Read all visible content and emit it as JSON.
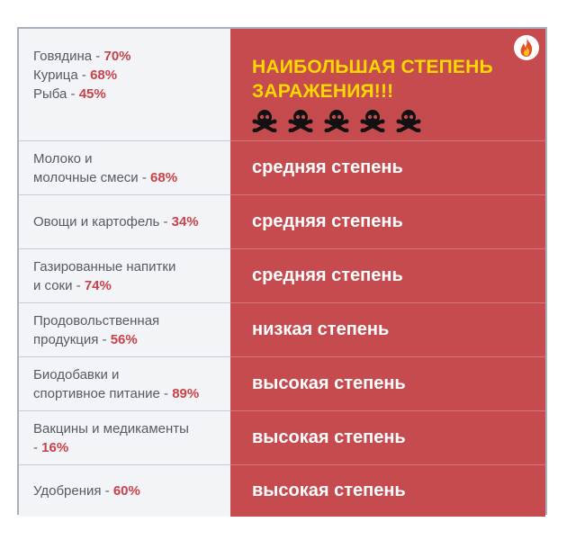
{
  "first_row": {
    "lines": [
      {
        "label": "Говядина - ",
        "pct": "70%"
      },
      {
        "label": "Курица - ",
        "pct": "68%"
      },
      {
        "label": "Рыба - ",
        "pct": "45%"
      }
    ],
    "headline_line1": "НАИБОЛЬШАЯ СТЕПЕНЬ",
    "headline_line2": "ЗАРАЖЕНИЯ!!!",
    "icons": [
      "skull-crossbones-icon",
      "skull-crossbones-icon",
      "skull-crossbones-icon",
      "skull-crossbones-icon",
      "skull-crossbones-icon"
    ],
    "badge_icon": "fire-icon"
  },
  "rows": [
    {
      "line1": "Молоко и",
      "line2": "молочные смеси - ",
      "pct": "68%",
      "degree": "средняя степень"
    },
    {
      "line1": "",
      "line2": "Овощи и картофель - ",
      "pct": "34%",
      "degree": "средняя степень"
    },
    {
      "line1": "Газированные напитки",
      "line2": "и соки - ",
      "pct": "74%",
      "degree": "средняя степень"
    },
    {
      "line1": "Продовольственная",
      "line2": "продукция - ",
      "pct": "56%",
      "degree": "низкая степень"
    },
    {
      "line1": "Биодобавки и",
      "line2": "спортивное питание - ",
      "pct": "89%",
      "degree": "высокая степень"
    },
    {
      "line1": "Вакцины и медикаменты",
      "line2": "- ",
      "pct": "16%",
      "degree": "высокая степень"
    },
    {
      "line1": "",
      "line2": "Удобрения - ",
      "pct": "60%",
      "degree": "высокая степень"
    }
  ],
  "colors": {
    "accent_red": "#c64b4f",
    "percent_red": "#c84349",
    "headline_yellow": "#ffd800",
    "left_bg": "#f2f4f7"
  }
}
